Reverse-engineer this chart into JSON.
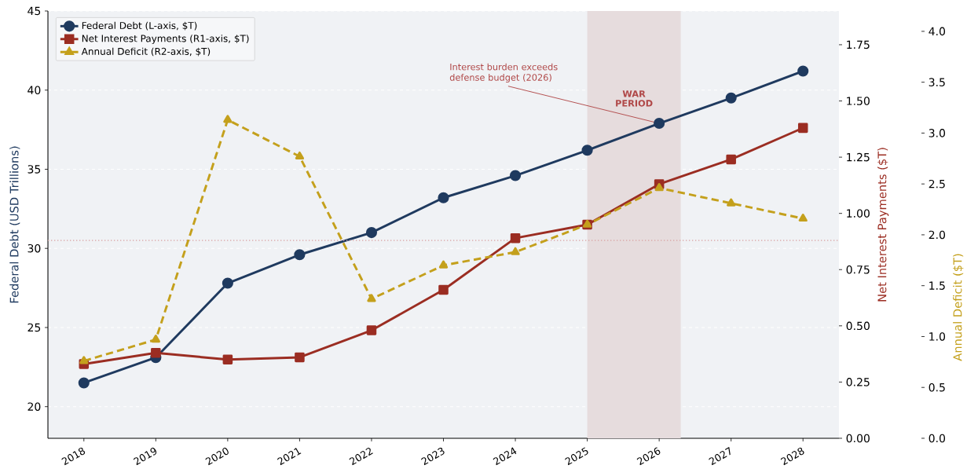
{
  "chart_data": {
    "type": "line",
    "xlabel": null,
    "x": [
      2018,
      2019,
      2020,
      2021,
      2022,
      2023,
      2024,
      2025,
      2026,
      2027,
      2028
    ],
    "xlim": [
      2017.5,
      2028.5
    ],
    "xticks": [
      2018,
      2019,
      2020,
      2021,
      2022,
      2023,
      2024,
      2025,
      2026,
      2027,
      2028
    ],
    "ylabel": "Federal Debt (USD Trillions)",
    "ylim": [
      18,
      45
    ],
    "yticks": [
      20,
      25,
      30,
      35,
      40,
      45
    ],
    "y2label": "Net Interest Payments ($T)",
    "y2lim": [
      0,
      1.9
    ],
    "y2ticks": [
      {
        "value": 0,
        "label": "0.00"
      },
      {
        "value": 0.25,
        "label": "0.25"
      },
      {
        "value": 0.5,
        "label": "0.50"
      },
      {
        "value": 0.75,
        "label": "0.75"
      },
      {
        "value": 1,
        "label": "1.00"
      },
      {
        "value": 1.25,
        "label": "1.25"
      },
      {
        "value": 1.5,
        "label": "1.50"
      },
      {
        "value": 1.75,
        "label": "1.75"
      }
    ],
    "y3label": "Annual Deficit ($T)",
    "y3lim": [
      0,
      4.2
    ],
    "y3ticks": [
      {
        "value": 0,
        "label": "0.0"
      },
      {
        "value": 0.5,
        "label": "0.5"
      },
      {
        "value": 1,
        "label": "1.0"
      },
      {
        "value": 1.5,
        "label": "1.5"
      },
      {
        "value": 2,
        "label": "2.0"
      },
      {
        "value": 2.5,
        "label": "2.5"
      },
      {
        "value": 3,
        "label": "3.0"
      },
      {
        "value": 3.5,
        "label": "3.5"
      },
      {
        "value": 4,
        "label": "4.0"
      }
    ],
    "series": [
      {
        "name": "Federal Debt (L-axis, $T)",
        "color": "#1f3a5f",
        "marker": "circle",
        "line_style": "solid",
        "values": [
          21.5,
          23.1,
          27.8,
          29.6,
          31.0,
          33.2,
          34.6,
          36.2,
          37.9,
          39.5,
          41.2
        ]
      },
      {
        "name": "Net Interest Payments (R1-axis, $T)",
        "color": "#9b2d22",
        "marker": "square",
        "line_style": "solid",
        "axis": "y2",
        "values": [
          0.33,
          0.38,
          0.35,
          0.36,
          0.48,
          0.66,
          0.89,
          0.95,
          1.13,
          1.24,
          1.38
        ]
      },
      {
        "name": "Annual Deficit (R2-axis, $T)",
        "color": "#c4a01c",
        "marker": "triangle",
        "line_style": "dashed",
        "axis": "y3",
        "values": [
          0.76,
          0.97,
          3.13,
          2.77,
          1.37,
          1.7,
          1.83,
          2.1,
          2.46,
          2.31,
          2.16
        ]
      }
    ],
    "bands": [
      {
        "axis": "x",
        "from": 2025,
        "to": 2026.3,
        "label": "WAR PERIOD",
        "color": "#e6dcdd"
      }
    ],
    "ref_lines": [
      {
        "axis": "y2",
        "value": 0.88,
        "color": "#d9a3a3",
        "line_style": "dotted"
      }
    ],
    "annotations": [
      {
        "text": "Interest burden exceeds defense budget (2026)",
        "x": 2026,
        "y": 37.9
      }
    ],
    "grid": "y",
    "legend": "top left"
  }
}
